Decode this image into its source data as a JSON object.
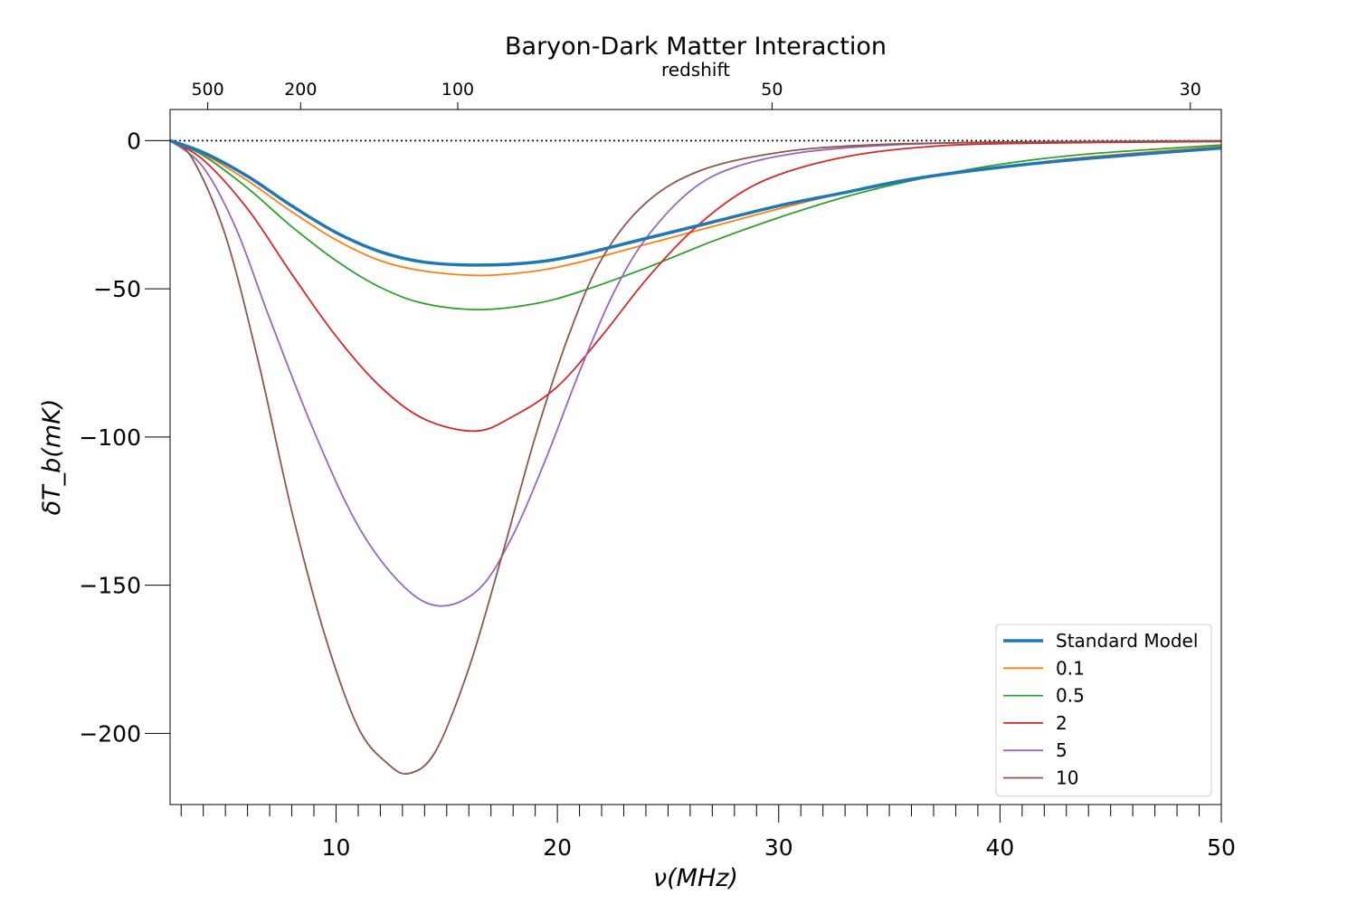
{
  "chart_data": {
    "type": "line",
    "title": "Baryon-Dark Matter Interaction",
    "xlabel": "ν(MHz)",
    "ylabel": "δT_b(mK)",
    "secondary_xlabel": "redshift",
    "xlim": [
      2.5,
      50
    ],
    "ylim": [
      -224,
      10.5
    ],
    "x_ticks": [
      10,
      20,
      30,
      40,
      50
    ],
    "y_ticks": [
      0,
      -50,
      -100,
      -150,
      -200
    ],
    "y_tick_labels": [
      "0",
      "−50",
      "−100",
      "−150",
      "−200"
    ],
    "redshift_ticks": [
      {
        "label": "500",
        "nu": 4.2
      },
      {
        "label": "200",
        "nu": 8.4
      },
      {
        "label": "100",
        "nu": 15.5
      },
      {
        "label": "50",
        "nu": 29.7
      },
      {
        "label": "30",
        "nu": 48.6
      }
    ],
    "zero_line": true,
    "legend_position": "lower-right",
    "series": [
      {
        "name": "Standard Model",
        "color": "#1f77b4",
        "thick": true,
        "points": [
          [
            2.5,
            0
          ],
          [
            4,
            -4
          ],
          [
            6,
            -12
          ],
          [
            8,
            -22
          ],
          [
            10,
            -31
          ],
          [
            12,
            -37.5
          ],
          [
            14,
            -41
          ],
          [
            16.5,
            -42
          ],
          [
            19,
            -41
          ],
          [
            21,
            -38.5
          ],
          [
            24,
            -33
          ],
          [
            27,
            -27.5
          ],
          [
            30,
            -22
          ],
          [
            33,
            -17.5
          ],
          [
            36,
            -13
          ],
          [
            40,
            -9
          ],
          [
            44,
            -6
          ],
          [
            50,
            -2.5
          ]
        ]
      },
      {
        "name": "0.1",
        "color": "#ff7f0e",
        "thick": false,
        "points": [
          [
            2.5,
            0
          ],
          [
            4,
            -4.5
          ],
          [
            6,
            -13.5
          ],
          [
            8,
            -24
          ],
          [
            10,
            -33.5
          ],
          [
            12,
            -40.5
          ],
          [
            14,
            -44
          ],
          [
            16.5,
            -45.5
          ],
          [
            19,
            -44
          ],
          [
            21,
            -41
          ],
          [
            24,
            -35
          ],
          [
            27,
            -29
          ],
          [
            30,
            -23
          ],
          [
            33,
            -17.5
          ],
          [
            36,
            -13
          ],
          [
            40,
            -9
          ],
          [
            44,
            -5.5
          ],
          [
            50,
            -2
          ]
        ]
      },
      {
        "name": "0.5",
        "color": "#2ca02c",
        "thick": false,
        "points": [
          [
            2.5,
            0
          ],
          [
            4,
            -5
          ],
          [
            6,
            -16
          ],
          [
            8,
            -29
          ],
          [
            10,
            -40.5
          ],
          [
            12,
            -49.5
          ],
          [
            14,
            -55
          ],
          [
            16.5,
            -57
          ],
          [
            19,
            -55
          ],
          [
            21,
            -51
          ],
          [
            24,
            -43
          ],
          [
            27,
            -34
          ],
          [
            30,
            -26
          ],
          [
            33,
            -19
          ],
          [
            36,
            -13.5
          ],
          [
            40,
            -8
          ],
          [
            44,
            -4.5
          ],
          [
            50,
            -1.5
          ]
        ]
      },
      {
        "name": "2",
        "color": "#d62728",
        "thick": false,
        "points": [
          [
            2.5,
            0
          ],
          [
            4,
            -6.5
          ],
          [
            6,
            -23
          ],
          [
            8,
            -45
          ],
          [
            10,
            -66
          ],
          [
            12,
            -83
          ],
          [
            14,
            -94
          ],
          [
            16.3,
            -98
          ],
          [
            18,
            -93
          ],
          [
            20,
            -83
          ],
          [
            22,
            -66
          ],
          [
            24,
            -47
          ],
          [
            26,
            -31
          ],
          [
            28,
            -19
          ],
          [
            30,
            -11.5
          ],
          [
            33,
            -5.5
          ],
          [
            36,
            -2.5
          ],
          [
            40,
            -1
          ],
          [
            50,
            -0.3
          ]
        ]
      },
      {
        "name": "5",
        "color": "#9467bd",
        "thick": false,
        "points": [
          [
            2.5,
            0
          ],
          [
            4,
            -9
          ],
          [
            5.5,
            -30
          ],
          [
            7,
            -60
          ],
          [
            9,
            -98
          ],
          [
            11,
            -130
          ],
          [
            13,
            -150
          ],
          [
            14.7,
            -157
          ],
          [
            16.5,
            -151
          ],
          [
            18,
            -133
          ],
          [
            19.5,
            -107
          ],
          [
            21,
            -78
          ],
          [
            22.5,
            -52
          ],
          [
            24,
            -33
          ],
          [
            26,
            -17
          ],
          [
            28,
            -9
          ],
          [
            31,
            -4
          ],
          [
            35,
            -1.5
          ],
          [
            40,
            -0.5
          ],
          [
            50,
            -0.1
          ]
        ]
      },
      {
        "name": "10",
        "color": "#8c564b",
        "thick": false,
        "points": [
          [
            2.5,
            0
          ],
          [
            3.5,
            -6
          ],
          [
            5,
            -32
          ],
          [
            6.5,
            -75
          ],
          [
            8,
            -125
          ],
          [
            9.5,
            -167
          ],
          [
            11,
            -198
          ],
          [
            12.3,
            -210
          ],
          [
            13.3,
            -213.5
          ],
          [
            14.5,
            -206
          ],
          [
            16,
            -178
          ],
          [
            17.5,
            -140
          ],
          [
            19,
            -100
          ],
          [
            20.5,
            -66
          ],
          [
            22,
            -40
          ],
          [
            24,
            -21
          ],
          [
            26.5,
            -10
          ],
          [
            30,
            -4
          ],
          [
            34,
            -1.5
          ],
          [
            40,
            -0.5
          ],
          [
            50,
            -0.1
          ]
        ]
      }
    ]
  }
}
